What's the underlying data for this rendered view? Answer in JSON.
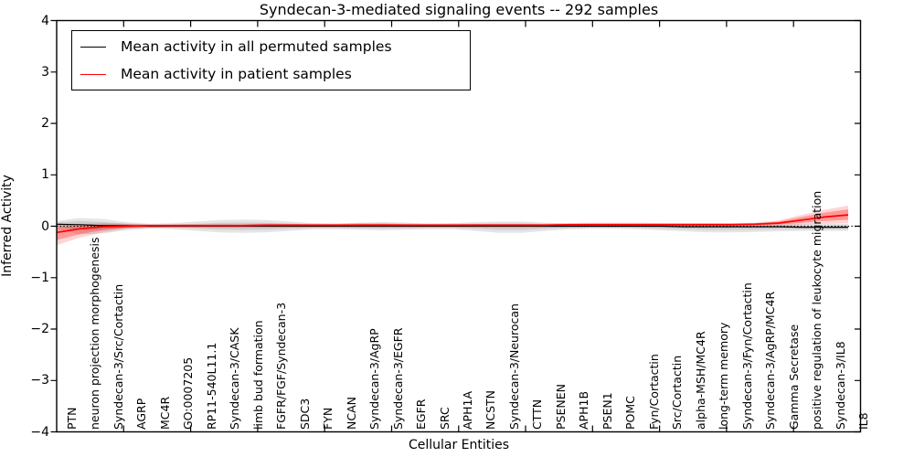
{
  "chart_data": {
    "type": "line",
    "title": "Syndecan-3-mediated signaling events -- 292 samples",
    "xlabel": "Cellular Entities",
    "ylabel": "Inferred Activity",
    "ylim": [
      -4,
      4
    ],
    "yticks": [
      4,
      3,
      2,
      1,
      0,
      -1,
      -2,
      -3,
      -4
    ],
    "grid": false,
    "zero_line": true,
    "legend_position": "upper left",
    "categories": [
      "PTN",
      "neuron projection morphogenesis",
      "Syndecan-3/Src/Cortactin",
      "AGRP",
      "MC4R",
      "GO:0007205",
      "RP11-540L11.1",
      "Syndecan-3/CASK",
      "limb bud formation",
      "FGFR/FGF/Syndecan-3",
      "SDC3",
      "FYN",
      "NCAN",
      "Syndecan-3/AgRP",
      "Syndecan-3/EGFR",
      "EGFR",
      "SRC",
      "APH1A",
      "NCSTN",
      "Syndecan-3/Neurocan",
      "CTTN",
      "PSENEN",
      "APH1B",
      "PSEN1",
      "POMC",
      "Fyn/Cortactin",
      "Src/Cortactin",
      "alpha-MSH/MC4R",
      "long-term memory",
      "Syndecan-3/Fyn/Cortactin",
      "Syndecan-3/AgRP/MC4R",
      "Gamma Secretase",
      "positive regulation of leukocyte migration",
      "Syndecan-3/IL8",
      "IL8"
    ],
    "series": [
      {
        "name": "Mean activity in all permuted samples",
        "color": "#000000",
        "values": [
          0.04,
          0.03,
          0.01,
          0.01,
          0,
          0,
          0,
          0,
          0,
          0,
          0,
          0,
          0,
          0,
          0,
          0,
          0,
          0,
          0,
          0,
          0,
          0,
          0,
          0,
          0,
          0,
          0,
          -0.01,
          -0.01,
          -0.01,
          -0.01,
          -0.01,
          -0.02,
          -0.02,
          -0.02
        ],
        "band": {
          "upper": [
            0.1,
            0.16,
            0.14,
            0.08,
            0.05,
            0.06,
            0.09,
            0.12,
            0.13,
            0.12,
            0.09,
            0.06,
            0.05,
            0.07,
            0.08,
            0.07,
            0.05,
            0.06,
            0.08,
            0.09,
            0.09,
            0.07,
            0.05,
            0.05,
            0.05,
            0.05,
            0.06,
            0.06,
            0.06,
            0.06,
            0.06,
            0.06,
            0.05,
            0.05,
            0.05
          ],
          "lower": [
            -0.05,
            -0.16,
            -0.14,
            -0.08,
            -0.05,
            -0.06,
            -0.09,
            -0.12,
            -0.13,
            -0.12,
            -0.09,
            -0.06,
            -0.06,
            -0.07,
            -0.08,
            -0.07,
            -0.06,
            -0.06,
            -0.09,
            -0.13,
            -0.13,
            -0.09,
            -0.06,
            -0.05,
            -0.05,
            -0.06,
            -0.08,
            -0.1,
            -0.12,
            -0.12,
            -0.11,
            -0.1,
            -0.09,
            -0.09,
            -0.09
          ],
          "fill": "rgba(0,0,0,0.10)"
        }
      },
      {
        "name": "Mean activity in patient samples",
        "color": "#ff0000",
        "values": [
          -0.12,
          -0.05,
          -0.01,
          0.0,
          0.01,
          0.01,
          0.01,
          0.01,
          0.01,
          0.02,
          0.02,
          0.02,
          0.02,
          0.02,
          0.02,
          0.02,
          0.02,
          0.02,
          0.02,
          0.02,
          0.02,
          0.02,
          0.03,
          0.03,
          0.03,
          0.03,
          0.03,
          0.03,
          0.03,
          0.03,
          0.04,
          0.06,
          0.12,
          0.18,
          0.22
        ],
        "band": {
          "upper": [
            0.05,
            0.04,
            0.06,
            0.05,
            0.04,
            0.04,
            0.04,
            0.04,
            0.04,
            0.05,
            0.05,
            0.05,
            0.05,
            0.06,
            0.06,
            0.05,
            0.05,
            0.05,
            0.05,
            0.05,
            0.05,
            0.05,
            0.06,
            0.07,
            0.07,
            0.07,
            0.06,
            0.06,
            0.06,
            0.06,
            0.07,
            0.11,
            0.22,
            0.32,
            0.4
          ],
          "lower": [
            -0.37,
            -0.22,
            -0.12,
            -0.05,
            -0.03,
            -0.02,
            -0.02,
            -0.02,
            -0.02,
            -0.01,
            -0.01,
            -0.01,
            -0.01,
            -0.01,
            -0.01,
            -0.01,
            -0.01,
            -0.01,
            -0.01,
            -0.01,
            -0.01,
            -0.01,
            0.0,
            0.0,
            0.0,
            0.0,
            0.0,
            0.0,
            0.0,
            0.0,
            0.01,
            0.02,
            0.03,
            0.05,
            0.06
          ],
          "fill": "rgba(255,0,0,0.17)"
        }
      }
    ]
  }
}
